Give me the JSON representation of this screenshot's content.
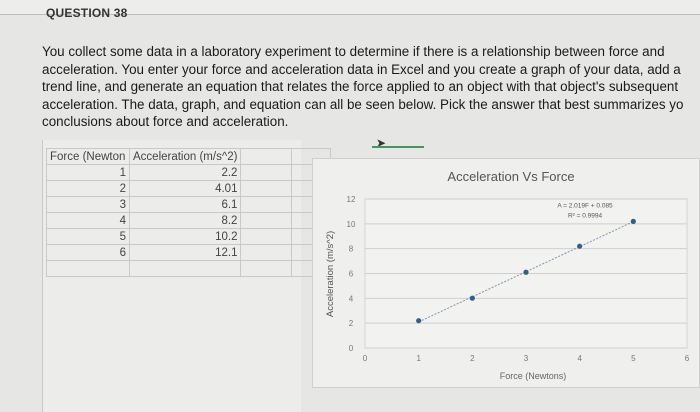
{
  "question": {
    "label": "QUESTION 38",
    "lines": [
      "You collect some data in a laboratory experiment to determine if there is a relationship between force and",
      "acceleration. You enter your force and acceleration data in Excel and you create a graph of your data, add a",
      "trend line, and generate an equation that relates the force applied to an object with that object's subsequent",
      "acceleration. The data, graph, and equation can all be seen below. Pick the answer that best summarizes yo",
      "conclusions about force and acceleration."
    ]
  },
  "table": {
    "headers": [
      "Force (Newton",
      "Acceleration (m/s^2)"
    ],
    "rows": [
      [
        "1",
        "2.2"
      ],
      [
        "2",
        "4.01"
      ],
      [
        "3",
        "6.1"
      ],
      [
        "4",
        "8.2"
      ],
      [
        "5",
        "10.2"
      ],
      [
        "6",
        "12.1"
      ]
    ]
  },
  "chart_data": {
    "type": "scatter",
    "title": "Acceleration Vs Force",
    "xlabel": "Force (Newtons)",
    "ylabel": "Acceleration (m/s^2)",
    "xlim": [
      0,
      6
    ],
    "ylim": [
      0,
      12
    ],
    "xticks": [
      "0",
      "1",
      "2",
      "3",
      "4",
      "5",
      "6"
    ],
    "yticks": [
      "0",
      "2",
      "4",
      "6",
      "8",
      "10",
      "12"
    ],
    "grid": "horizontal",
    "x": [
      1,
      2,
      3,
      4,
      5
    ],
    "y": [
      2.2,
      4.01,
      6.1,
      8.2,
      10.2
    ],
    "trendline": {
      "slope": 2.019,
      "intercept": 0.085,
      "equation": "A = 2.019F + 0.085",
      "r2": "R² = 0.9994"
    },
    "marker_color": "#2f5f8f",
    "trend_color": "#7f95a8"
  }
}
